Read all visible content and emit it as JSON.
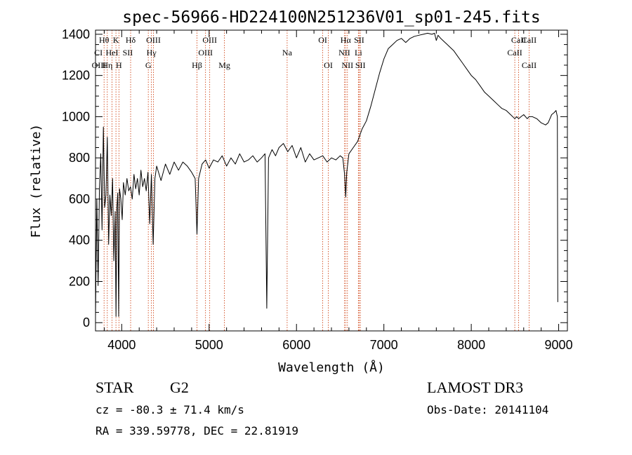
{
  "chart_data": {
    "type": "line",
    "title": "spec-56966-HD224100N251236V01_sp01-245.fits",
    "xlabel": "Wavelength (Å)",
    "ylabel": "Flux (relative)",
    "xlim": [
      3700,
      9100
    ],
    "ylim": [
      -40,
      1420
    ],
    "x_ticks": [
      4000,
      5000,
      6000,
      7000,
      8000,
      9000
    ],
    "y_ticks": [
      0,
      200,
      400,
      600,
      800,
      1000,
      1200,
      1400
    ],
    "series": [
      {
        "name": "spectrum",
        "x": [
          3700,
          3715,
          3730,
          3745,
          3760,
          3775,
          3790,
          3805,
          3820,
          3835,
          3850,
          3865,
          3880,
          3895,
          3910,
          3925,
          3935,
          3945,
          3955,
          3965,
          3975,
          3990,
          4005,
          4020,
          4040,
          4060,
          4080,
          4100,
          4120,
          4140,
          4160,
          4180,
          4200,
          4220,
          4240,
          4260,
          4280,
          4300,
          4320,
          4340,
          4360,
          4380,
          4400,
          4450,
          4500,
          4550,
          4600,
          4650,
          4700,
          4750,
          4800,
          4840,
          4861,
          4880,
          4920,
          4960,
          5000,
          5050,
          5100,
          5150,
          5200,
          5250,
          5300,
          5350,
          5400,
          5450,
          5500,
          5550,
          5600,
          5640,
          5660,
          5680,
          5720,
          5760,
          5800,
          5850,
          5900,
          5950,
          6000,
          6050,
          6100,
          6150,
          6200,
          6250,
          6300,
          6350,
          6400,
          6450,
          6500,
          6530,
          6550,
          6563,
          6575,
          6600,
          6650,
          6700,
          6750,
          6800,
          6850,
          6900,
          6950,
          7000,
          7050,
          7100,
          7150,
          7200,
          7250,
          7300,
          7350,
          7400,
          7450,
          7500,
          7550,
          7580,
          7600,
          7620,
          7650,
          7700,
          7750,
          7800,
          7850,
          7900,
          7950,
          8000,
          8050,
          8100,
          8150,
          8200,
          8250,
          8300,
          8350,
          8400,
          8450,
          8498,
          8520,
          8542,
          8570,
          8600,
          8640,
          8662,
          8700,
          8750,
          8800,
          8850,
          8880,
          8920,
          8950,
          8970,
          8985,
          8990
        ],
        "values": [
          30,
          600,
          180,
          650,
          820,
          450,
          950,
          560,
          620,
          900,
          380,
          620,
          520,
          700,
          300,
          540,
          30,
          560,
          630,
          30,
          650,
          600,
          500,
          680,
          620,
          700,
          640,
          660,
          600,
          720,
          650,
          700,
          620,
          740,
          660,
          700,
          640,
          730,
          480,
          720,
          380,
          700,
          760,
          690,
          770,
          720,
          780,
          740,
          780,
          760,
          730,
          700,
          430,
          700,
          770,
          790,
          750,
          790,
          780,
          810,
          760,
          800,
          770,
          820,
          780,
          790,
          810,
          780,
          800,
          820,
          70,
          800,
          840,
          810,
          850,
          870,
          830,
          860,
          800,
          850,
          780,
          820,
          790,
          800,
          810,
          780,
          800,
          790,
          810,
          800,
          720,
          610,
          730,
          820,
          850,
          880,
          940,
          980,
          1050,
          1130,
          1210,
          1280,
          1330,
          1350,
          1370,
          1380,
          1360,
          1380,
          1390,
          1395,
          1400,
          1405,
          1400,
          1405,
          1370,
          1395,
          1380,
          1360,
          1340,
          1320,
          1290,
          1260,
          1230,
          1200,
          1180,
          1150,
          1120,
          1100,
          1080,
          1060,
          1040,
          1030,
          1010,
          990,
          1000,
          990,
          1000,
          1010,
          990,
          1000,
          1000,
          990,
          970,
          960,
          970,
          1010,
          1020,
          1030,
          1000,
          100
        ]
      }
    ],
    "spectral_lines": [
      {
        "label": "Hθ",
        "x": 3798,
        "row": 0
      },
      {
        "label": "K",
        "x": 3934,
        "row": 0
      },
      {
        "label": "Hδ",
        "x": 4102,
        "row": 0
      },
      {
        "label": "OIII",
        "x": 4363,
        "row": 0
      },
      {
        "label": "OIII",
        "x": 5007,
        "row": 0
      },
      {
        "label": "OI",
        "x": 6300,
        "row": 0
      },
      {
        "label": "Hα",
        "x": 6563,
        "row": 0
      },
      {
        "label": "SII",
        "x": 6717,
        "row": 0
      },
      {
        "label": "CaII",
        "x": 8542,
        "row": 0
      },
      {
        "label": "CaII",
        "x": 8662,
        "row": 0
      },
      {
        "label": "CI",
        "x": 3733,
        "row": 1
      },
      {
        "label": "HeI",
        "x": 3889,
        "row": 1
      },
      {
        "label": "SII",
        "x": 4069,
        "row": 1
      },
      {
        "label": "Hγ",
        "x": 4340,
        "row": 1
      },
      {
        "label": "OIII",
        "x": 4959,
        "row": 1
      },
      {
        "label": "Na",
        "x": 5893,
        "row": 1
      },
      {
        "label": "NII",
        "x": 6548,
        "row": 1
      },
      {
        "label": "Li",
        "x": 6708,
        "row": 1
      },
      {
        "label": "CaII",
        "x": 8498,
        "row": 1
      },
      {
        "label": "OIII",
        "x": 3740,
        "row": 2
      },
      {
        "label": "Hη",
        "x": 3835,
        "row": 2
      },
      {
        "label": "H",
        "x": 3968,
        "row": 2
      },
      {
        "label": "G",
        "x": 4304,
        "row": 2
      },
      {
        "label": "Hβ",
        "x": 4861,
        "row": 2
      },
      {
        "label": "Mg",
        "x": 5175,
        "row": 2
      },
      {
        "label": "OI",
        "x": 6364,
        "row": 2
      },
      {
        "label": "NII",
        "x": 6583,
        "row": 2
      },
      {
        "label": "SII",
        "x": 6731,
        "row": 2
      },
      {
        "label": "CaII",
        "x": 8662,
        "row": 2
      }
    ],
    "marker_lines_x": [
      3798,
      3835,
      3889,
      3934,
      3968,
      4102,
      4304,
      4340,
      4363,
      4861,
      4959,
      5007,
      5175,
      5893,
      6300,
      6364,
      6548,
      6563,
      6583,
      6708,
      6717,
      6731,
      8498,
      8542,
      8662
    ],
    "colors": {
      "line": "#000000",
      "marker": "#cc3300",
      "axis": "#000000"
    }
  },
  "info": {
    "object_class": "STAR",
    "subclass": "G2",
    "survey": "LAMOST DR3",
    "redshift": "cz = -80.3 ± 71.4 km/s",
    "obs_date": "Obs-Date: 20141104",
    "coords": "RA = 339.59778, DEC =  22.81919"
  }
}
